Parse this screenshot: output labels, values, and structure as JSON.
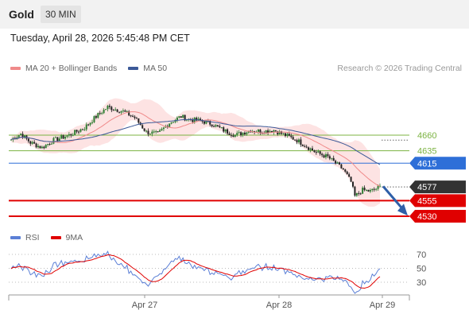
{
  "header": {
    "symbol": "Gold",
    "timeframe": "30 MIN"
  },
  "timestamp": "Tuesday, April 28, 2026 5:45:48 PM CET",
  "legend": {
    "ma20": {
      "label": "MA 20 + Bollinger Bands",
      "color": "#f08a8a"
    },
    "ma50": {
      "label": "MA 50",
      "color": "#3b5998"
    },
    "rsi": {
      "label": "RSI",
      "color": "#5b7fd6"
    },
    "rsi_ma": {
      "label": "9MA",
      "color": "#e00000"
    }
  },
  "credit": "Research © 2026 Trading Central",
  "chart_data": {
    "type": "candlestick",
    "price_axis": {
      "min": 4515,
      "max": 4720
    },
    "levels": [
      {
        "label": "4660",
        "value": 4660,
        "kind": "resistance",
        "color": "#7cb342"
      },
      {
        "label": "4635",
        "value": 4635,
        "kind": "resistance",
        "color": "#7cb342"
      },
      {
        "label": "4615",
        "value": 4615,
        "kind": "pivot",
        "color": "#2e6fd8"
      },
      {
        "label": "4577",
        "value": 4577,
        "kind": "last-price",
        "color": "#333333"
      },
      {
        "label": "4555",
        "value": 4555,
        "kind": "support",
        "color": "#e00000"
      },
      {
        "label": "4530",
        "value": 4530,
        "kind": "support",
        "color": "#e00000"
      }
    ],
    "forecast": {
      "from": 4578,
      "to": 4536,
      "color": "#2e5fa8"
    },
    "x_ticks": [
      "Apr 27",
      "Apr 28",
      "Apr 29"
    ],
    "rsi_axis": {
      "min": 10,
      "max": 85,
      "ticks": [
        70,
        50,
        30
      ]
    }
  }
}
